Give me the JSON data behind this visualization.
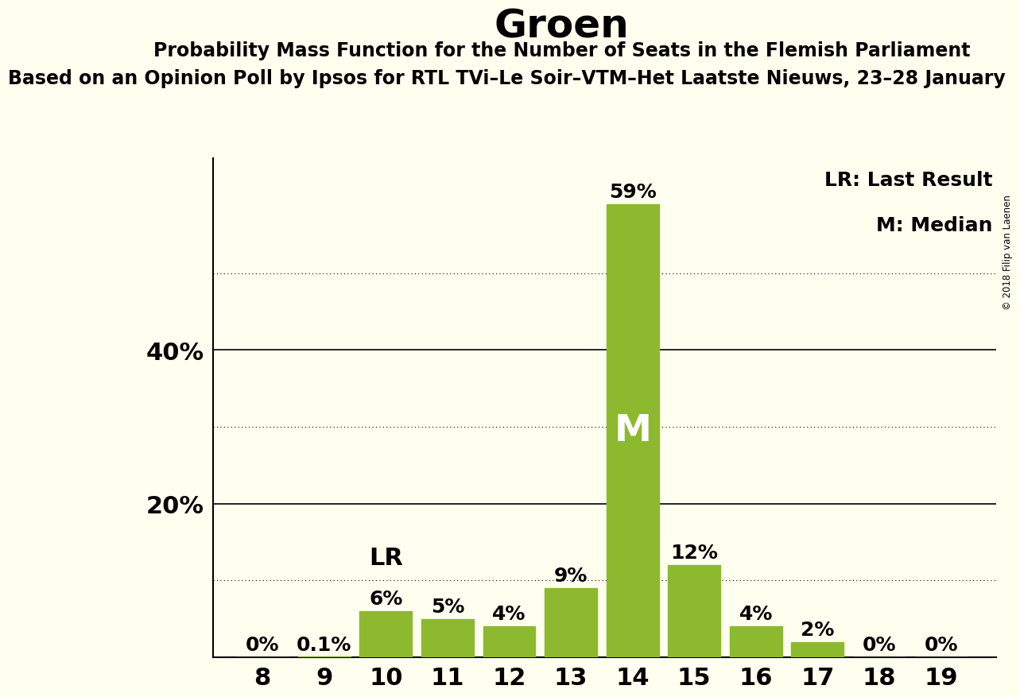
{
  "title": "Groen",
  "subtitle": "Probability Mass Function for the Number of Seats in the Flemish Parliament",
  "source_line": "Based on an Opinion Poll by Ipsos for RTL TVi–Le Soir–VTM–Het Laatste Nieuws, 23–28 January",
  "copyright": "© 2018 Filip van Laenen",
  "seats": [
    8,
    9,
    10,
    11,
    12,
    13,
    14,
    15,
    16,
    17,
    18,
    19
  ],
  "probabilities": [
    0.0,
    0.001,
    0.06,
    0.05,
    0.04,
    0.09,
    0.59,
    0.12,
    0.04,
    0.02,
    0.0,
    0.0
  ],
  "labels": [
    "0%",
    "0.1%",
    "6%",
    "5%",
    "4%",
    "9%",
    "59%",
    "12%",
    "4%",
    "2%",
    "0%",
    "0%"
  ],
  "bar_color": "#8db92e",
  "background_color": "#fffff0",
  "median_seat": 14,
  "lr_seat": 10,
  "yticks_solid": [
    0.0,
    0.2,
    0.4
  ],
  "yticks_dotted": [
    0.1,
    0.3,
    0.5
  ],
  "ylim": [
    0,
    0.65
  ],
  "legend_lr": "LR: Last Result",
  "legend_m": "M: Median",
  "title_fontsize": 36,
  "subtitle_fontsize": 17,
  "source_fontsize": 17,
  "tick_fontsize": 22,
  "label_fontsize": 18,
  "lr_fontsize": 22,
  "m_fontsize": 34,
  "legend_fontsize": 18
}
